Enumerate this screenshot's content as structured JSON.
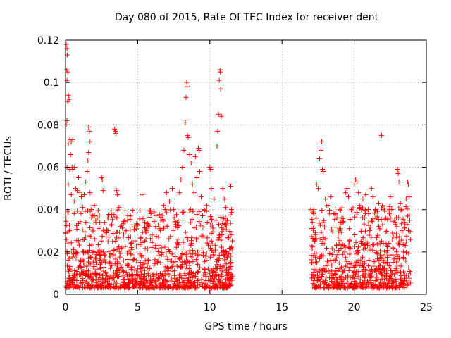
{
  "chart_data": {
    "type": "scatter",
    "title": "Day 080 of 2015, Rate Of TEC Index for receiver dent",
    "xlabel": "GPS time / hours",
    "ylabel": "ROTI / TECUs",
    "xlim": [
      0,
      25
    ],
    "ylim": [
      0,
      0.12
    ],
    "x_ticks": [
      0,
      5,
      10,
      15,
      20,
      25
    ],
    "x_tick_labels": [
      "0",
      "5",
      "10",
      "15",
      "20",
      "25"
    ],
    "y_ticks": [
      0,
      0.02,
      0.04,
      0.06,
      0.08,
      0.1,
      0.12
    ],
    "y_tick_labels": [
      "0",
      "0.02",
      "0.04",
      "0.06",
      "0.08",
      "0.1",
      "0.12"
    ],
    "grid": true,
    "marker": "+",
    "color": "#ff0000",
    "series": [
      {
        "points": [
          [
            0.05,
            0.118
          ],
          [
            0.1,
            0.116
          ],
          [
            0.12,
            0.113
          ],
          [
            0.08,
            0.106
          ],
          [
            0.15,
            0.105
          ],
          [
            0.1,
            0.101
          ],
          [
            0.2,
            0.094
          ],
          [
            0.15,
            0.091
          ],
          [
            0.25,
            0.092
          ],
          [
            0.1,
            0.082
          ],
          [
            0.05,
            0.08
          ],
          [
            0.3,
            0.073
          ],
          [
            0.2,
            0.071
          ],
          [
            0.4,
            0.072
          ],
          [
            0.5,
            0.073
          ],
          [
            0.35,
            0.066
          ],
          [
            0.45,
            0.06
          ],
          [
            0.5,
            0.059
          ],
          [
            0.6,
            0.06
          ],
          [
            0.7,
            0.05
          ],
          [
            0.8,
            0.049
          ],
          [
            0.9,
            0.055
          ],
          [
            1.0,
            0.048
          ],
          [
            0.3,
            0.059
          ],
          [
            0.1,
            0.06
          ],
          [
            0.2,
            0.052
          ],
          [
            0.4,
            0.047
          ],
          [
            0.6,
            0.044
          ],
          [
            1.1,
            0.046
          ],
          [
            1.2,
            0.041
          ],
          [
            1.3,
            0.047
          ],
          [
            1.4,
            0.053
          ],
          [
            1.5,
            0.058
          ],
          [
            1.55,
            0.063
          ],
          [
            1.6,
            0.067
          ],
          [
            1.7,
            0.048
          ],
          [
            1.6,
            0.079
          ],
          [
            1.65,
            0.077
          ],
          [
            1.7,
            0.072
          ],
          [
            1.8,
            0.04
          ],
          [
            1.9,
            0.037
          ],
          [
            2.0,
            0.042
          ],
          [
            2.1,
            0.034
          ],
          [
            2.2,
            0.036
          ],
          [
            2.5,
            0.055
          ],
          [
            2.55,
            0.054
          ],
          [
            2.6,
            0.049
          ],
          [
            2.7,
            0.034
          ],
          [
            2.8,
            0.029
          ],
          [
            3.0,
            0.027
          ],
          [
            3.2,
            0.033
          ],
          [
            3.4,
            0.078
          ],
          [
            3.45,
            0.077
          ],
          [
            3.5,
            0.076
          ],
          [
            3.55,
            0.049
          ],
          [
            3.6,
            0.047
          ],
          [
            3.7,
            0.041
          ],
          [
            3.8,
            0.032
          ],
          [
            4.0,
            0.027
          ],
          [
            4.2,
            0.03
          ],
          [
            4.3,
            0.035
          ],
          [
            4.5,
            0.037
          ],
          [
            5.0,
            0.033
          ],
          [
            5.3,
            0.047
          ],
          [
            5.5,
            0.034
          ],
          [
            5.8,
            0.032
          ],
          [
            6.0,
            0.028
          ],
          [
            6.5,
            0.031
          ],
          [
            6.6,
            0.035
          ],
          [
            6.8,
            0.042
          ],
          [
            6.9,
            0.04
          ],
          [
            7.0,
            0.048
          ],
          [
            7.2,
            0.044
          ],
          [
            7.4,
            0.05
          ],
          [
            7.5,
            0.04
          ],
          [
            7.8,
            0.035
          ],
          [
            7.9,
            0.048
          ],
          [
            8.0,
            0.054
          ],
          [
            8.1,
            0.06
          ],
          [
            8.2,
            0.068
          ],
          [
            8.3,
            0.081
          ],
          [
            8.35,
            0.093
          ],
          [
            8.4,
            0.1
          ],
          [
            8.42,
            0.098
          ],
          [
            8.45,
            0.075
          ],
          [
            8.5,
            0.074
          ],
          [
            8.6,
            0.066
          ],
          [
            8.7,
            0.062
          ],
          [
            8.8,
            0.052
          ],
          [
            8.9,
            0.048
          ],
          [
            9.0,
            0.065
          ],
          [
            9.1,
            0.055
          ],
          [
            9.2,
            0.069
          ],
          [
            9.25,
            0.068
          ],
          [
            9.3,
            0.058
          ],
          [
            9.4,
            0.046
          ],
          [
            9.6,
            0.04
          ],
          [
            9.8,
            0.042
          ],
          [
            10.0,
            0.06
          ],
          [
            10.05,
            0.059
          ],
          [
            10.1,
            0.05
          ],
          [
            10.3,
            0.045
          ],
          [
            10.5,
            0.07
          ],
          [
            10.55,
            0.077
          ],
          [
            10.6,
            0.085
          ],
          [
            10.65,
            0.101
          ],
          [
            10.7,
            0.106
          ],
          [
            10.72,
            0.105
          ],
          [
            10.75,
            0.097
          ],
          [
            10.8,
            0.084
          ],
          [
            10.9,
            0.05
          ],
          [
            11.0,
            0.045
          ],
          [
            11.1,
            0.041
          ],
          [
            11.2,
            0.035
          ],
          [
            11.4,
            0.052
          ],
          [
            11.45,
            0.051
          ],
          [
            11.5,
            0.04
          ],
          [
            17.0,
            0.04
          ],
          [
            17.1,
            0.034
          ],
          [
            17.2,
            0.04
          ],
          [
            17.4,
            0.052
          ],
          [
            17.5,
            0.05
          ],
          [
            17.6,
            0.064
          ],
          [
            17.7,
            0.068
          ],
          [
            17.75,
            0.072
          ],
          [
            17.8,
            0.059
          ],
          [
            17.85,
            0.058
          ],
          [
            18.0,
            0.045
          ],
          [
            18.2,
            0.042
          ],
          [
            18.4,
            0.046
          ],
          [
            18.6,
            0.038
          ],
          [
            18.8,
            0.036
          ],
          [
            19.0,
            0.04
          ],
          [
            19.2,
            0.034
          ],
          [
            19.4,
            0.048
          ],
          [
            19.5,
            0.05
          ],
          [
            19.6,
            0.046
          ],
          [
            19.8,
            0.04
          ],
          [
            20.0,
            0.052
          ],
          [
            20.1,
            0.054
          ],
          [
            20.2,
            0.053
          ],
          [
            20.3,
            0.048
          ],
          [
            20.4,
            0.041
          ],
          [
            20.5,
            0.04
          ],
          [
            20.6,
            0.045
          ],
          [
            20.8,
            0.047
          ],
          [
            21.0,
            0.038
          ],
          [
            21.2,
            0.05
          ],
          [
            21.3,
            0.046
          ],
          [
            21.5,
            0.036
          ],
          [
            21.7,
            0.043
          ],
          [
            21.9,
            0.075
          ],
          [
            22.0,
            0.04
          ],
          [
            22.2,
            0.036
          ],
          [
            22.5,
            0.046
          ],
          [
            22.6,
            0.04
          ],
          [
            22.8,
            0.035
          ],
          [
            23.0,
            0.059
          ],
          [
            23.05,
            0.057
          ],
          [
            23.1,
            0.053
          ],
          [
            23.2,
            0.043
          ],
          [
            23.3,
            0.04
          ],
          [
            23.5,
            0.034
          ],
          [
            23.6,
            0.045
          ],
          [
            23.7,
            0.053
          ],
          [
            23.75,
            0.052
          ],
          [
            23.8,
            0.046
          ],
          [
            23.85,
            0.035
          ]
        ],
        "dense_bands": [
          {
            "x_range": [
              0,
              11.6
            ],
            "y_range": [
              0.003,
              0.022
            ]
          },
          {
            "x_range": [
              17,
              23.9
            ],
            "y_range": [
              0.003,
              0.024
            ]
          }
        ]
      }
    ]
  }
}
